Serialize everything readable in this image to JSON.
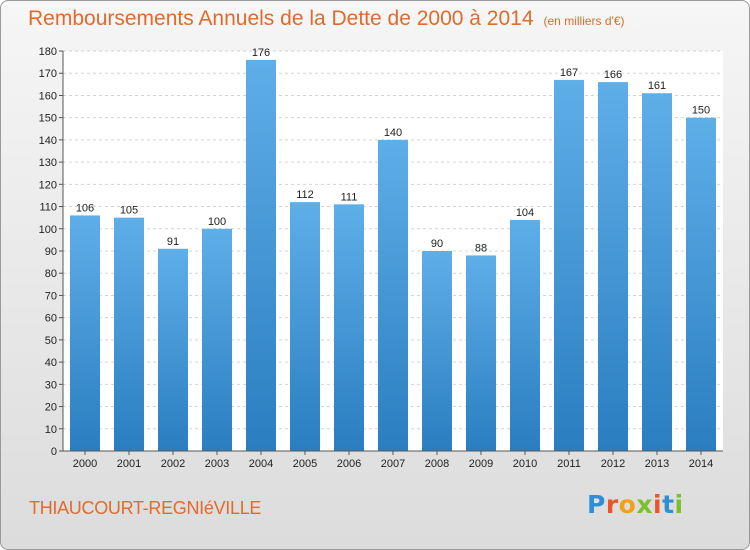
{
  "chart_data": {
    "type": "bar",
    "title": "Remboursements Annuels de la Dette de 2000 à 2014",
    "unit_label": "(en milliers d'€)",
    "categories": [
      "2000",
      "2001",
      "2002",
      "2003",
      "2004",
      "2005",
      "2006",
      "2007",
      "2008",
      "2009",
      "2010",
      "2011",
      "2012",
      "2013",
      "2014"
    ],
    "values": [
      106,
      105,
      91,
      100,
      176,
      112,
      111,
      140,
      90,
      88,
      104,
      167,
      166,
      161,
      150
    ],
    "ylim": [
      0,
      180
    ],
    "ytick_step": 10,
    "grid": true,
    "bar_color_top": "#5eaee8",
    "bar_color_bottom": "#2a7ec0"
  },
  "footer": {
    "city": "THIAUCOURT-REGNIéVILLE",
    "logo_letters": [
      {
        "ch": "P",
        "color": "#2e8fd6"
      },
      {
        "ch": "r",
        "color": "#e8562a"
      },
      {
        "ch": "o",
        "color": "#f0a21a"
      },
      {
        "ch": "x",
        "color": "#7cbf2f"
      },
      {
        "ch": "i",
        "color": "#e8562a"
      },
      {
        "ch": "t",
        "color": "#2e8fd6"
      },
      {
        "ch": "i",
        "color": "#7cbf2f"
      }
    ]
  },
  "colors": {
    "accent": "#e06b2c"
  }
}
